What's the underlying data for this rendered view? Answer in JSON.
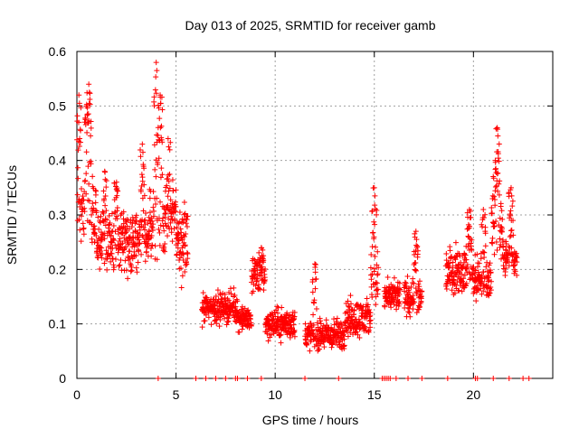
{
  "chart_data": {
    "type": "scatter",
    "title": "Day 013 of 2025, SRMTID for receiver gamb",
    "xlabel": "GPS time / hours",
    "ylabel": "SRMTID / TECUs",
    "xlim": [
      0,
      24
    ],
    "ylim": [
      0,
      0.6
    ],
    "xticks": [
      0,
      5,
      10,
      15,
      20
    ],
    "yticks": [
      0,
      0.1,
      0.2,
      0.3,
      0.4,
      0.5,
      0.6
    ],
    "xtick_labels": [
      "0",
      "5",
      "10",
      "15",
      "20"
    ],
    "ytick_labels": [
      "0",
      "0.1",
      "0.2",
      "0.3",
      "0.4",
      "0.5",
      "0.6"
    ],
    "grid": true,
    "marker": "+",
    "color": "#ff0000",
    "series": [
      {
        "name": "SRMTID",
        "profile": [
          {
            "x": [
              0.0,
              1.0
            ],
            "center": 0.3,
            "spread": 0.1,
            "peaks": [
              [
                0.1,
                0.52
              ],
              [
                0.5,
                0.5
              ],
              [
                0.6,
                0.54
              ]
            ]
          },
          {
            "x": [
              1.0,
              2.8
            ],
            "center": 0.25,
            "spread": 0.08,
            "peaks": [
              [
                1.4,
                0.38
              ],
              [
                2.0,
                0.36
              ]
            ]
          },
          {
            "x": [
              2.8,
              3.6
            ],
            "center": 0.26,
            "spread": 0.07,
            "peaks": [
              [
                3.3,
                0.43
              ]
            ]
          },
          {
            "x": [
              3.6,
              4.4
            ],
            "center": 0.28,
            "spread": 0.1,
            "peaks": [
              [
                4.0,
                0.58
              ],
              [
                4.2,
                0.52
              ]
            ]
          },
          {
            "x": [
              4.4,
              5.0
            ],
            "center": 0.3,
            "spread": 0.08,
            "peaks": [
              [
                4.6,
                0.44
              ]
            ]
          },
          {
            "x": [
              5.0,
              5.6
            ],
            "center": 0.25,
            "spread": 0.1,
            "peaks": []
          },
          {
            "x": [
              6.3,
              8.1
            ],
            "center": 0.13,
            "spread": 0.04,
            "peaks": []
          },
          {
            "x": [
              8.1,
              8.8
            ],
            "center": 0.11,
            "spread": 0.03,
            "peaks": []
          },
          {
            "x": [
              8.8,
              9.5
            ],
            "center": 0.19,
            "spread": 0.05,
            "peaks": [
              [
                9.3,
                0.24
              ]
            ]
          },
          {
            "x": [
              9.5,
              11.0
            ],
            "center": 0.1,
            "spread": 0.04,
            "peaks": []
          },
          {
            "x": [
              11.5,
              13.5
            ],
            "center": 0.08,
            "spread": 0.04,
            "peaks": [
              [
                12.0,
                0.21
              ]
            ]
          },
          {
            "x": [
              13.5,
              14.8
            ],
            "center": 0.11,
            "spread": 0.05,
            "peaks": []
          },
          {
            "x": [
              14.8,
              15.2
            ],
            "center": 0.18,
            "spread": 0.08,
            "peaks": [
              [
                15.0,
                0.35
              ]
            ]
          },
          {
            "x": [
              15.5,
              16.3
            ],
            "center": 0.15,
            "spread": 0.04,
            "peaks": []
          },
          {
            "x": [
              16.5,
              17.4
            ],
            "center": 0.15,
            "spread": 0.05,
            "peaks": [
              [
                17.1,
                0.27
              ]
            ]
          },
          {
            "x": [
              18.6,
              20.0
            ],
            "center": 0.2,
            "spread": 0.06,
            "peaks": [
              [
                19.8,
                0.31
              ]
            ]
          },
          {
            "x": [
              20.0,
              20.9
            ],
            "center": 0.18,
            "spread": 0.06,
            "peaks": [
              [
                20.5,
                0.31
              ]
            ]
          },
          {
            "x": [
              20.9,
              21.5
            ],
            "center": 0.28,
            "spread": 0.1,
            "peaks": [
              [
                21.2,
                0.46
              ],
              [
                21.1,
                0.4
              ]
            ]
          },
          {
            "x": [
              21.5,
              22.2
            ],
            "center": 0.22,
            "spread": 0.05,
            "peaks": [
              [
                21.9,
                0.35
              ]
            ]
          }
        ],
        "zero_points": [
          4.1,
          6.0,
          6.5,
          7.0,
          7.5,
          8.0,
          8.1,
          8.6,
          9.3,
          11.5,
          13.2,
          15.4,
          15.5,
          15.6,
          15.7,
          15.8,
          16.1,
          16.7,
          17.4,
          18.7,
          20.1,
          20.2,
          21.0,
          21.8,
          22.5,
          22.8
        ]
      }
    ]
  }
}
